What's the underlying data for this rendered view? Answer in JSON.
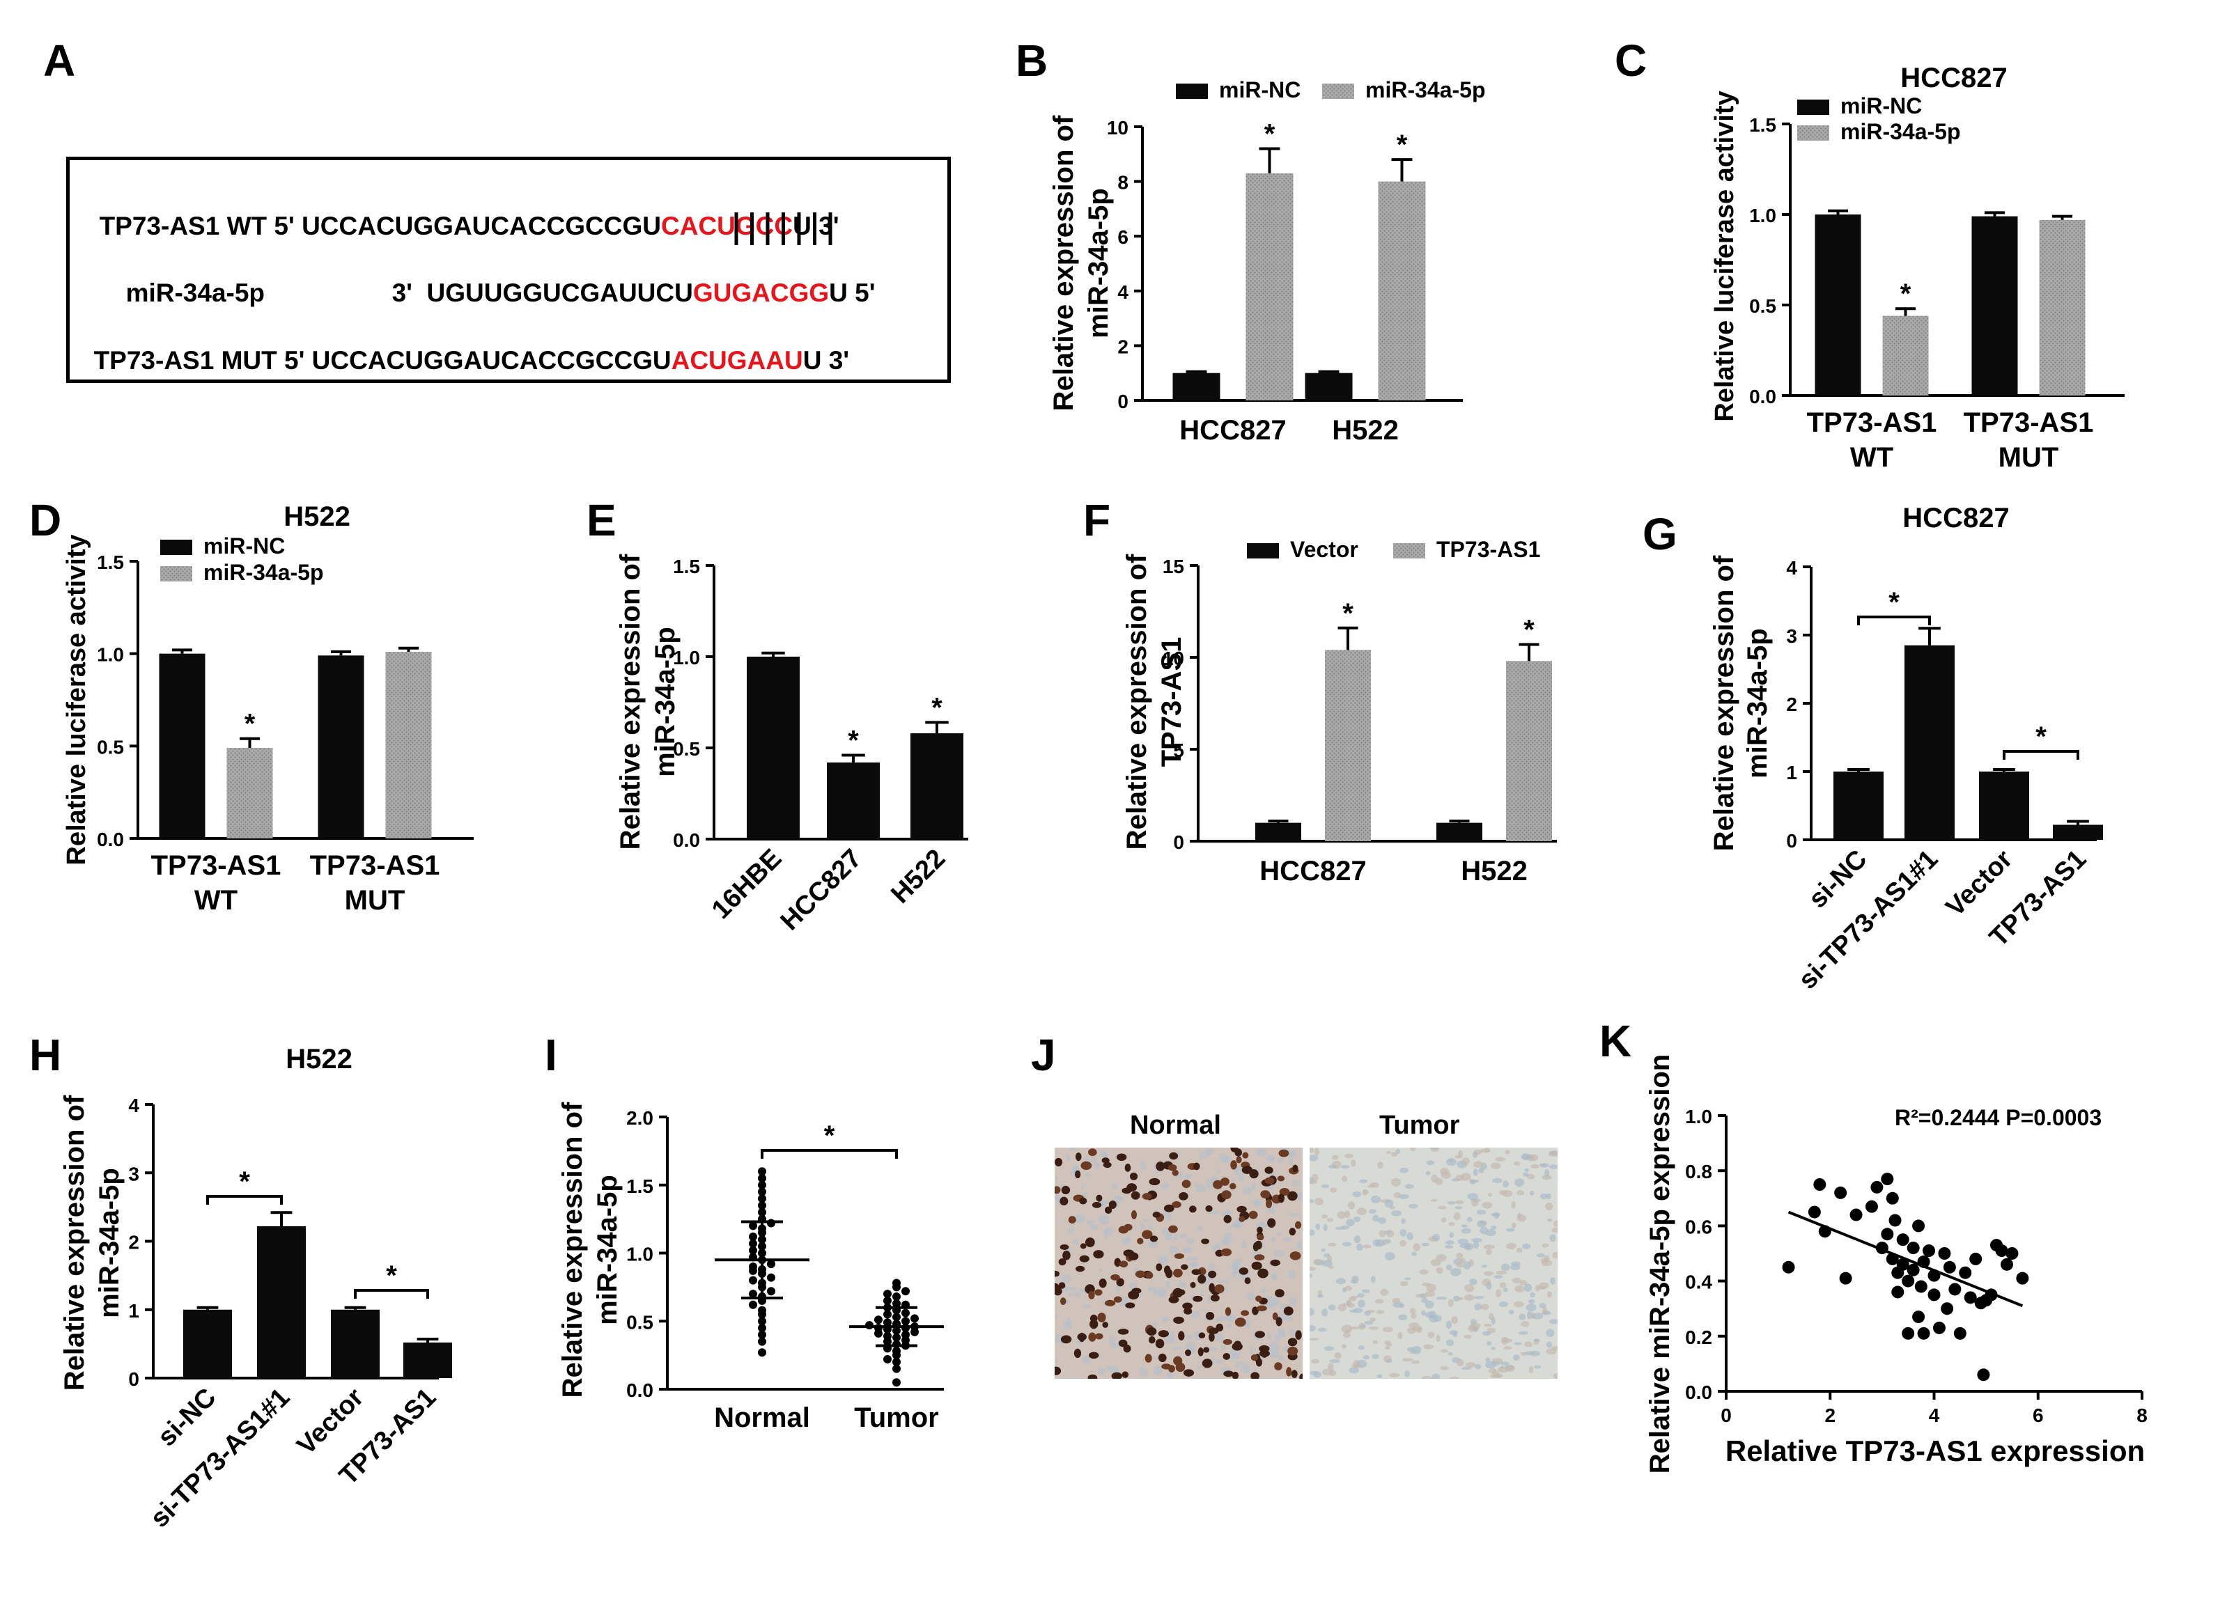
{
  "panel_letters": [
    "A",
    "B",
    "C",
    "D",
    "E",
    "F",
    "G",
    "H",
    "I",
    "J",
    "K"
  ],
  "colors": {
    "dark": "#0a0a0a",
    "gray": "#a9a9a9",
    "red": "#e8141c"
  },
  "panel_a": {
    "rows": [
      {
        "name": "TP73-AS1 WT",
        "prime5": "5'",
        "seq": "UCCACUGGAUCACCGCCGU",
        "site": "CACUGCC",
        "tail": "U",
        "prime3": "3'"
      },
      {
        "name": "miR-34a-5p",
        "prime5": "3'",
        "seq": "UGUUGGUCGAUUCU",
        "site": "GUGACGG",
        "tail": "U",
        "prime3": "5'"
      },
      {
        "name": "TP73-AS1 MUT",
        "prime5": "5'",
        "seq": "UCCACUGGAUCACCGCCGU",
        "site": "ACUGAAU",
        "tail": "U",
        "prime3": "3'"
      }
    ],
    "pair_bars": 7
  },
  "panel_j": {
    "labels": [
      "Normal",
      "Tumor"
    ]
  },
  "chart_data": [
    {
      "id": "B",
      "type": "bar",
      "title": "",
      "ylabel": [
        "Relative expression of",
        "miR-34a-5p"
      ],
      "categories": [
        "HCC827",
        "H522"
      ],
      "series": [
        {
          "name": "miR-NC",
          "values": [
            1.0,
            1.0
          ],
          "err": [
            0.05,
            0.05
          ],
          "star": [
            false,
            false
          ]
        },
        {
          "name": "miR-34a-5p",
          "values": [
            8.3,
            8.0
          ],
          "err": [
            0.9,
            0.8
          ],
          "star": [
            true,
            true
          ]
        }
      ],
      "ylim": [
        0,
        10
      ],
      "yticks": [
        "0",
        "2",
        "4",
        "6",
        "8",
        "10"
      ],
      "legend": "top"
    },
    {
      "id": "C",
      "type": "bar",
      "title": "HCC827",
      "ylabel": [
        "Relative luciferase activity"
      ],
      "categories": [
        [
          "TP73-AS1",
          "WT"
        ],
        [
          "TP73-AS1",
          "MUT"
        ]
      ],
      "series": [
        {
          "name": "miR-NC",
          "values": [
            1.0,
            0.99
          ],
          "err": [
            0.02,
            0.02
          ],
          "star": [
            false,
            false
          ]
        },
        {
          "name": "miR-34a-5p",
          "values": [
            0.44,
            0.97
          ],
          "err": [
            0.04,
            0.02
          ],
          "star": [
            true,
            false
          ]
        }
      ],
      "ylim": [
        0,
        1.5
      ],
      "yticks": [
        "0.0",
        "0.5",
        "1.0",
        "1.5"
      ],
      "legend": "top-left"
    },
    {
      "id": "D",
      "type": "bar",
      "title": "H522",
      "ylabel": [
        "Relative luciferase activity"
      ],
      "categories": [
        [
          "TP73-AS1",
          "WT"
        ],
        [
          "TP73-AS1",
          "MUT"
        ]
      ],
      "series": [
        {
          "name": "miR-NC",
          "values": [
            1.0,
            0.99
          ],
          "err": [
            0.02,
            0.02
          ],
          "star": [
            false,
            false
          ]
        },
        {
          "name": "miR-34a-5p",
          "values": [
            0.49,
            1.01
          ],
          "err": [
            0.05,
            0.02
          ],
          "star": [
            true,
            false
          ]
        }
      ],
      "ylim": [
        0,
        1.5
      ],
      "yticks": [
        "0.0",
        "0.5",
        "1.0",
        "1.5"
      ],
      "legend": "top-left"
    },
    {
      "id": "E",
      "type": "bar",
      "title": "",
      "ylabel": [
        "Relative expression of",
        "miR-34a-5p"
      ],
      "categories": [
        "16HBE",
        "HCC827",
        "H522"
      ],
      "series": [
        {
          "name": "",
          "values": [
            1.0,
            0.42,
            0.58
          ],
          "err": [
            0.02,
            0.04,
            0.06
          ],
          "star": [
            false,
            true,
            true
          ]
        }
      ],
      "ylim": [
        0,
        1.5
      ],
      "yticks": [
        "0.0",
        "0.5",
        "1.0",
        "1.5"
      ],
      "legend": "none"
    },
    {
      "id": "F",
      "type": "bar",
      "title": "",
      "ylabel": [
        "Relative expression of",
        "TP73-AS1"
      ],
      "categories": [
        "HCC827",
        "H522"
      ],
      "series": [
        {
          "name": "Vector",
          "values": [
            1.0,
            1.0
          ],
          "err": [
            0.1,
            0.1
          ],
          "star": [
            false,
            false
          ]
        },
        {
          "name": "TP73-AS1",
          "values": [
            10.4,
            9.8
          ],
          "err": [
            1.2,
            0.9
          ],
          "star": [
            true,
            true
          ]
        }
      ],
      "ylim": [
        0,
        15
      ],
      "yticks": [
        "0",
        "5",
        "10",
        "15"
      ],
      "legend": "top"
    },
    {
      "id": "G",
      "type": "bar",
      "title": "HCC827",
      "ylabel": [
        "Relative expression of",
        "miR-34a-5p"
      ],
      "categories": [
        "si-NC",
        "si-TP73-AS1#1",
        "Vector",
        "TP73-AS1"
      ],
      "series": [
        {
          "name": "",
          "values": [
            1.0,
            2.85,
            1.0,
            0.22
          ],
          "err": [
            0.03,
            0.25,
            0.03,
            0.05
          ],
          "star": [
            false,
            false,
            false,
            false
          ]
        }
      ],
      "brackets": [
        {
          "from": 0,
          "to": 1,
          "label": "*"
        },
        {
          "from": 2,
          "to": 3,
          "label": "*"
        }
      ],
      "ylim": [
        0,
        4
      ],
      "yticks": [
        "0",
        "1",
        "2",
        "3",
        "4"
      ],
      "legend": "none"
    },
    {
      "id": "H",
      "type": "bar",
      "title": "H522",
      "ylabel": [
        "Relative expression of",
        "miR-34a-5p"
      ],
      "categories": [
        "si-NC",
        "si-TP73-AS1#1",
        "Vector",
        "TP73-AS1"
      ],
      "series": [
        {
          "name": "",
          "values": [
            1.0,
            2.22,
            1.0,
            0.52
          ],
          "err": [
            0.03,
            0.2,
            0.03,
            0.05
          ],
          "star": [
            false,
            false,
            false,
            false
          ]
        }
      ],
      "brackets": [
        {
          "from": 0,
          "to": 1,
          "label": "*"
        },
        {
          "from": 2,
          "to": 3,
          "label": "*"
        }
      ],
      "ylim": [
        0,
        4
      ],
      "yticks": [
        "0",
        "1",
        "2",
        "3",
        "4"
      ],
      "legend": "none"
    },
    {
      "id": "I",
      "type": "scatter",
      "title": "",
      "ylabel": [
        "Relative expression of",
        "miR-34a-5p"
      ],
      "categories": [
        "Normal",
        "Tumor"
      ],
      "groups": [
        {
          "name": "Normal",
          "mean": 0.95,
          "sd": 0.28,
          "values": [
            0.27,
            0.35,
            0.4,
            0.45,
            0.5,
            0.55,
            0.58,
            0.62,
            0.65,
            0.68,
            0.7,
            0.72,
            0.75,
            0.78,
            0.8,
            0.82,
            0.85,
            0.87,
            0.88,
            0.9,
            0.92,
            0.95,
            0.97,
            1.0,
            1.02,
            1.05,
            1.07,
            1.1,
            1.12,
            1.15,
            1.18,
            1.2,
            1.22,
            1.25,
            1.3,
            1.35,
            1.4,
            1.45,
            1.5,
            1.55,
            1.6
          ]
        },
        {
          "name": "Tumor",
          "mean": 0.46,
          "sd": 0.14,
          "values": [
            0.05,
            0.15,
            0.2,
            0.22,
            0.25,
            0.28,
            0.3,
            0.32,
            0.33,
            0.35,
            0.36,
            0.38,
            0.39,
            0.4,
            0.41,
            0.42,
            0.43,
            0.44,
            0.45,
            0.45,
            0.46,
            0.47,
            0.48,
            0.49,
            0.5,
            0.51,
            0.52,
            0.53,
            0.55,
            0.56,
            0.58,
            0.6,
            0.62,
            0.63,
            0.65,
            0.68,
            0.7,
            0.72,
            0.75,
            0.78
          ]
        }
      ],
      "bracket_label": "*",
      "ylim": [
        0,
        2
      ],
      "yticks": [
        "0.0",
        "0.5",
        "1.0",
        "1.5",
        "2.0"
      ]
    },
    {
      "id": "K",
      "type": "scatter",
      "title": "",
      "annotation": "R²=0.2444 P=0.0003",
      "xlabel": "Relative TP73-AS1 expression",
      "ylabel": [
        "Relative miR-34a-5p expression"
      ],
      "xlim": [
        0,
        8
      ],
      "ylim": [
        0,
        1
      ],
      "xticks": [
        "0",
        "2",
        "4",
        "6",
        "8"
      ],
      "yticks": [
        "0.0",
        "0.2",
        "0.4",
        "0.6",
        "0.8",
        "1.0"
      ],
      "fit": {
        "x0": 1.2,
        "y0": 0.65,
        "x1": 5.7,
        "y1": 0.31
      },
      "points": [
        [
          1.2,
          0.45
        ],
        [
          1.7,
          0.65
        ],
        [
          1.8,
          0.75
        ],
        [
          1.9,
          0.58
        ],
        [
          2.2,
          0.72
        ],
        [
          2.3,
          0.41
        ],
        [
          2.5,
          0.64
        ],
        [
          2.8,
          0.67
        ],
        [
          2.9,
          0.74
        ],
        [
          3.0,
          0.52
        ],
        [
          3.1,
          0.77
        ],
        [
          3.2,
          0.7
        ],
        [
          3.1,
          0.57
        ],
        [
          3.2,
          0.48
        ],
        [
          3.25,
          0.62
        ],
        [
          3.3,
          0.43
        ],
        [
          3.3,
          0.36
        ],
        [
          3.4,
          0.55
        ],
        [
          3.4,
          0.46
        ],
        [
          3.5,
          0.21
        ],
        [
          3.5,
          0.4
        ],
        [
          3.6,
          0.52
        ],
        [
          3.6,
          0.44
        ],
        [
          3.7,
          0.6
        ],
        [
          3.7,
          0.27
        ],
        [
          3.75,
          0.38
        ],
        [
          3.8,
          0.47
        ],
        [
          3.8,
          0.21
        ],
        [
          3.9,
          0.51
        ],
        [
          4.0,
          0.42
        ],
        [
          4.0,
          0.35
        ],
        [
          4.1,
          0.23
        ],
        [
          4.2,
          0.5
        ],
        [
          4.25,
          0.3
        ],
        [
          4.3,
          0.45
        ],
        [
          4.4,
          0.37
        ],
        [
          4.5,
          0.21
        ],
        [
          4.6,
          0.43
        ],
        [
          4.7,
          0.34
        ],
        [
          4.8,
          0.48
        ],
        [
          4.9,
          0.32
        ],
        [
          4.95,
          0.06
        ],
        [
          5.0,
          0.33
        ],
        [
          5.1,
          0.35
        ],
        [
          5.2,
          0.53
        ],
        [
          5.3,
          0.51
        ],
        [
          5.4,
          0.46
        ],
        [
          5.5,
          0.5
        ],
        [
          5.7,
          0.41
        ]
      ]
    }
  ]
}
